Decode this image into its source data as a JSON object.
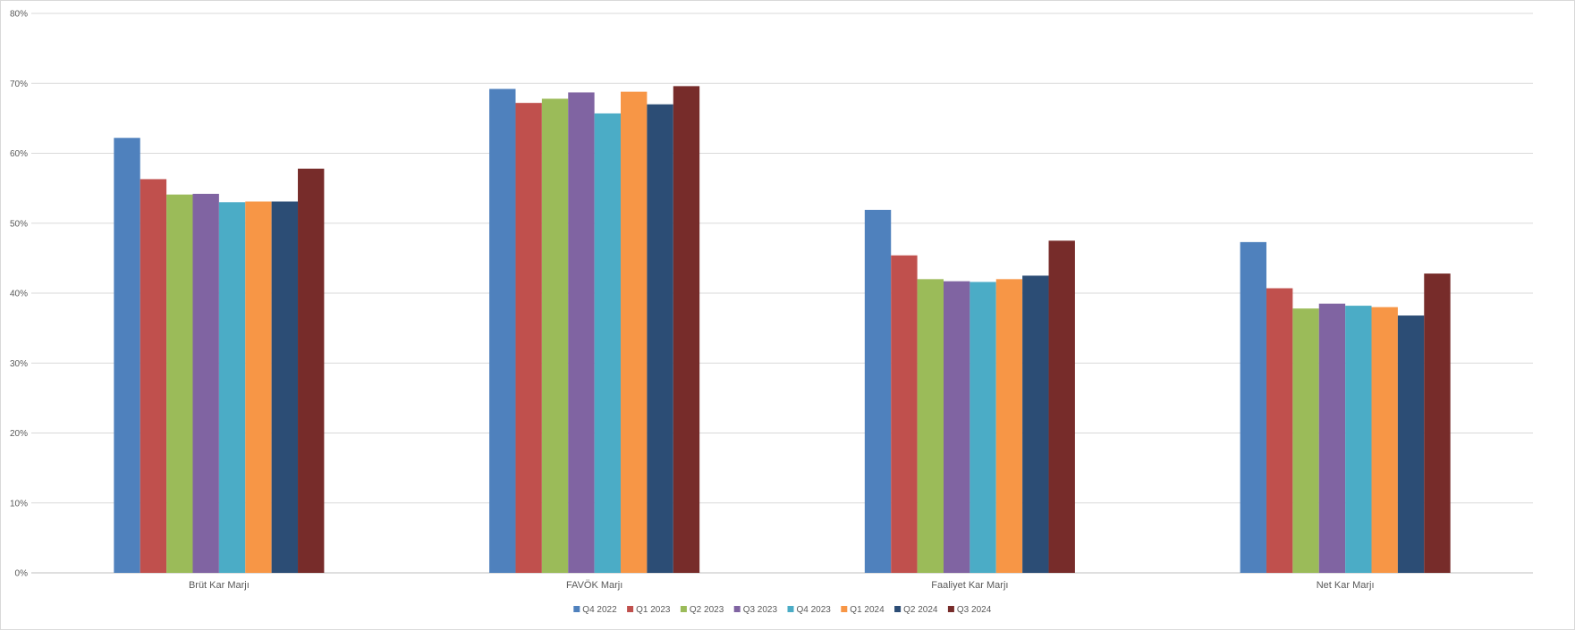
{
  "chart_data": {
    "type": "bar",
    "categories": [
      "Brüt Kar Marjı",
      "FAVÖK Marjı",
      "Faaliyet Kar Marjı",
      "Net Kar Marjı"
    ],
    "series": [
      {
        "name": "Q4 2022",
        "color": "#4F81BD",
        "values": [
          62.2,
          69.2,
          51.9,
          47.3
        ]
      },
      {
        "name": "Q1 2023",
        "color": "#C0504D",
        "values": [
          56.3,
          67.2,
          45.4,
          40.7
        ]
      },
      {
        "name": "Q2 2023",
        "color": "#9BBB59",
        "values": [
          54.1,
          67.8,
          42.0,
          37.8
        ]
      },
      {
        "name": "Q3 2023",
        "color": "#8064A2",
        "values": [
          54.2,
          68.7,
          41.7,
          38.5
        ]
      },
      {
        "name": "Q4 2023",
        "color": "#4BACC6",
        "values": [
          53.0,
          65.7,
          41.6,
          38.2
        ]
      },
      {
        "name": "Q1 2024",
        "color": "#F79646",
        "values": [
          53.1,
          68.8,
          42.0,
          38.0
        ]
      },
      {
        "name": "Q2 2024",
        "color": "#2C4D75",
        "values": [
          53.1,
          67.0,
          42.5,
          36.8
        ]
      },
      {
        "name": "Q3 2024",
        "color": "#772C2A",
        "values": [
          57.8,
          69.6,
          47.5,
          42.8
        ]
      }
    ],
    "ylim": [
      0,
      80
    ],
    "yticks": [
      "0%",
      "10%",
      "20%",
      "30%",
      "40%",
      "50%",
      "60%",
      "70%",
      "80%"
    ],
    "grid": true,
    "legend": "bottom"
  }
}
